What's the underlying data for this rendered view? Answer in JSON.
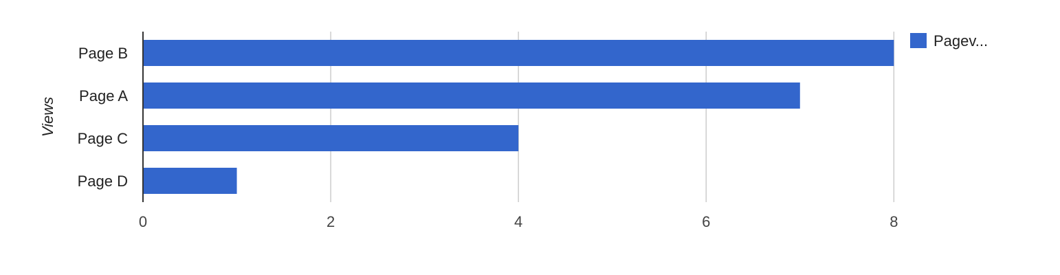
{
  "chart_data": {
    "type": "bar",
    "orientation": "horizontal",
    "categories": [
      "Page B",
      "Page A",
      "Page C",
      "Page D"
    ],
    "series": [
      {
        "name": "Pagev...",
        "values": [
          8,
          7,
          4,
          1
        ],
        "color": "#3366cc"
      }
    ],
    "ylabel": "Views",
    "xlabel": "",
    "xlim": [
      0,
      9.25
    ],
    "xticks": [
      0,
      2,
      4,
      6,
      8
    ],
    "grid": true,
    "legend_position": "right"
  }
}
